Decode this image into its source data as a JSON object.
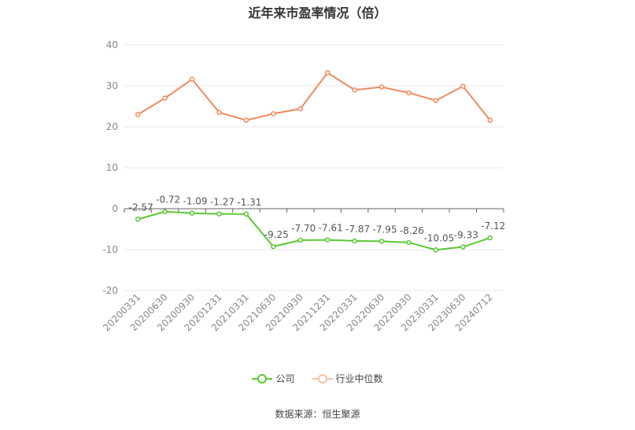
{
  "chart_data": {
    "type": "line",
    "title": "近年来市盈率情况（倍）",
    "categories": [
      "20200331",
      "20200630",
      "20200930",
      "20201231",
      "20210331",
      "20210630",
      "20210930",
      "20211231",
      "20220331",
      "20220630",
      "20220930",
      "20230331",
      "20230630",
      "20240712"
    ],
    "series": [
      {
        "name": "公司",
        "color": "#5ac832",
        "values": [
          -2.57,
          -0.72,
          -1.09,
          -1.27,
          -1.31,
          -9.25,
          -7.7,
          -7.61,
          -7.87,
          -7.95,
          -8.26,
          -10.05,
          -9.33,
          -7.12
        ],
        "labels": [
          "-2.57",
          "-0.72",
          "-1.09",
          "-1.27",
          "-1.31",
          "-9.25",
          "-7.70",
          "-7.61",
          "-7.87",
          "-7.95",
          "-8.26",
          "-10.05",
          "-9.33",
          "-7.12"
        ]
      },
      {
        "name": "行业中位数",
        "color": "#f08a5d",
        "values": [
          23.0,
          27.0,
          31.6,
          23.5,
          21.6,
          23.2,
          24.4,
          33.2,
          29.0,
          29.7,
          28.3,
          26.4,
          29.9,
          21.6
        ]
      }
    ],
    "yTicks": [
      "40",
      "30",
      "20",
      "10",
      "0",
      "-10",
      "-20"
    ],
    "ylim": [
      -20,
      40
    ],
    "grid": true,
    "legend_position": "bottom"
  },
  "source": "数据来源：恒生聚源"
}
